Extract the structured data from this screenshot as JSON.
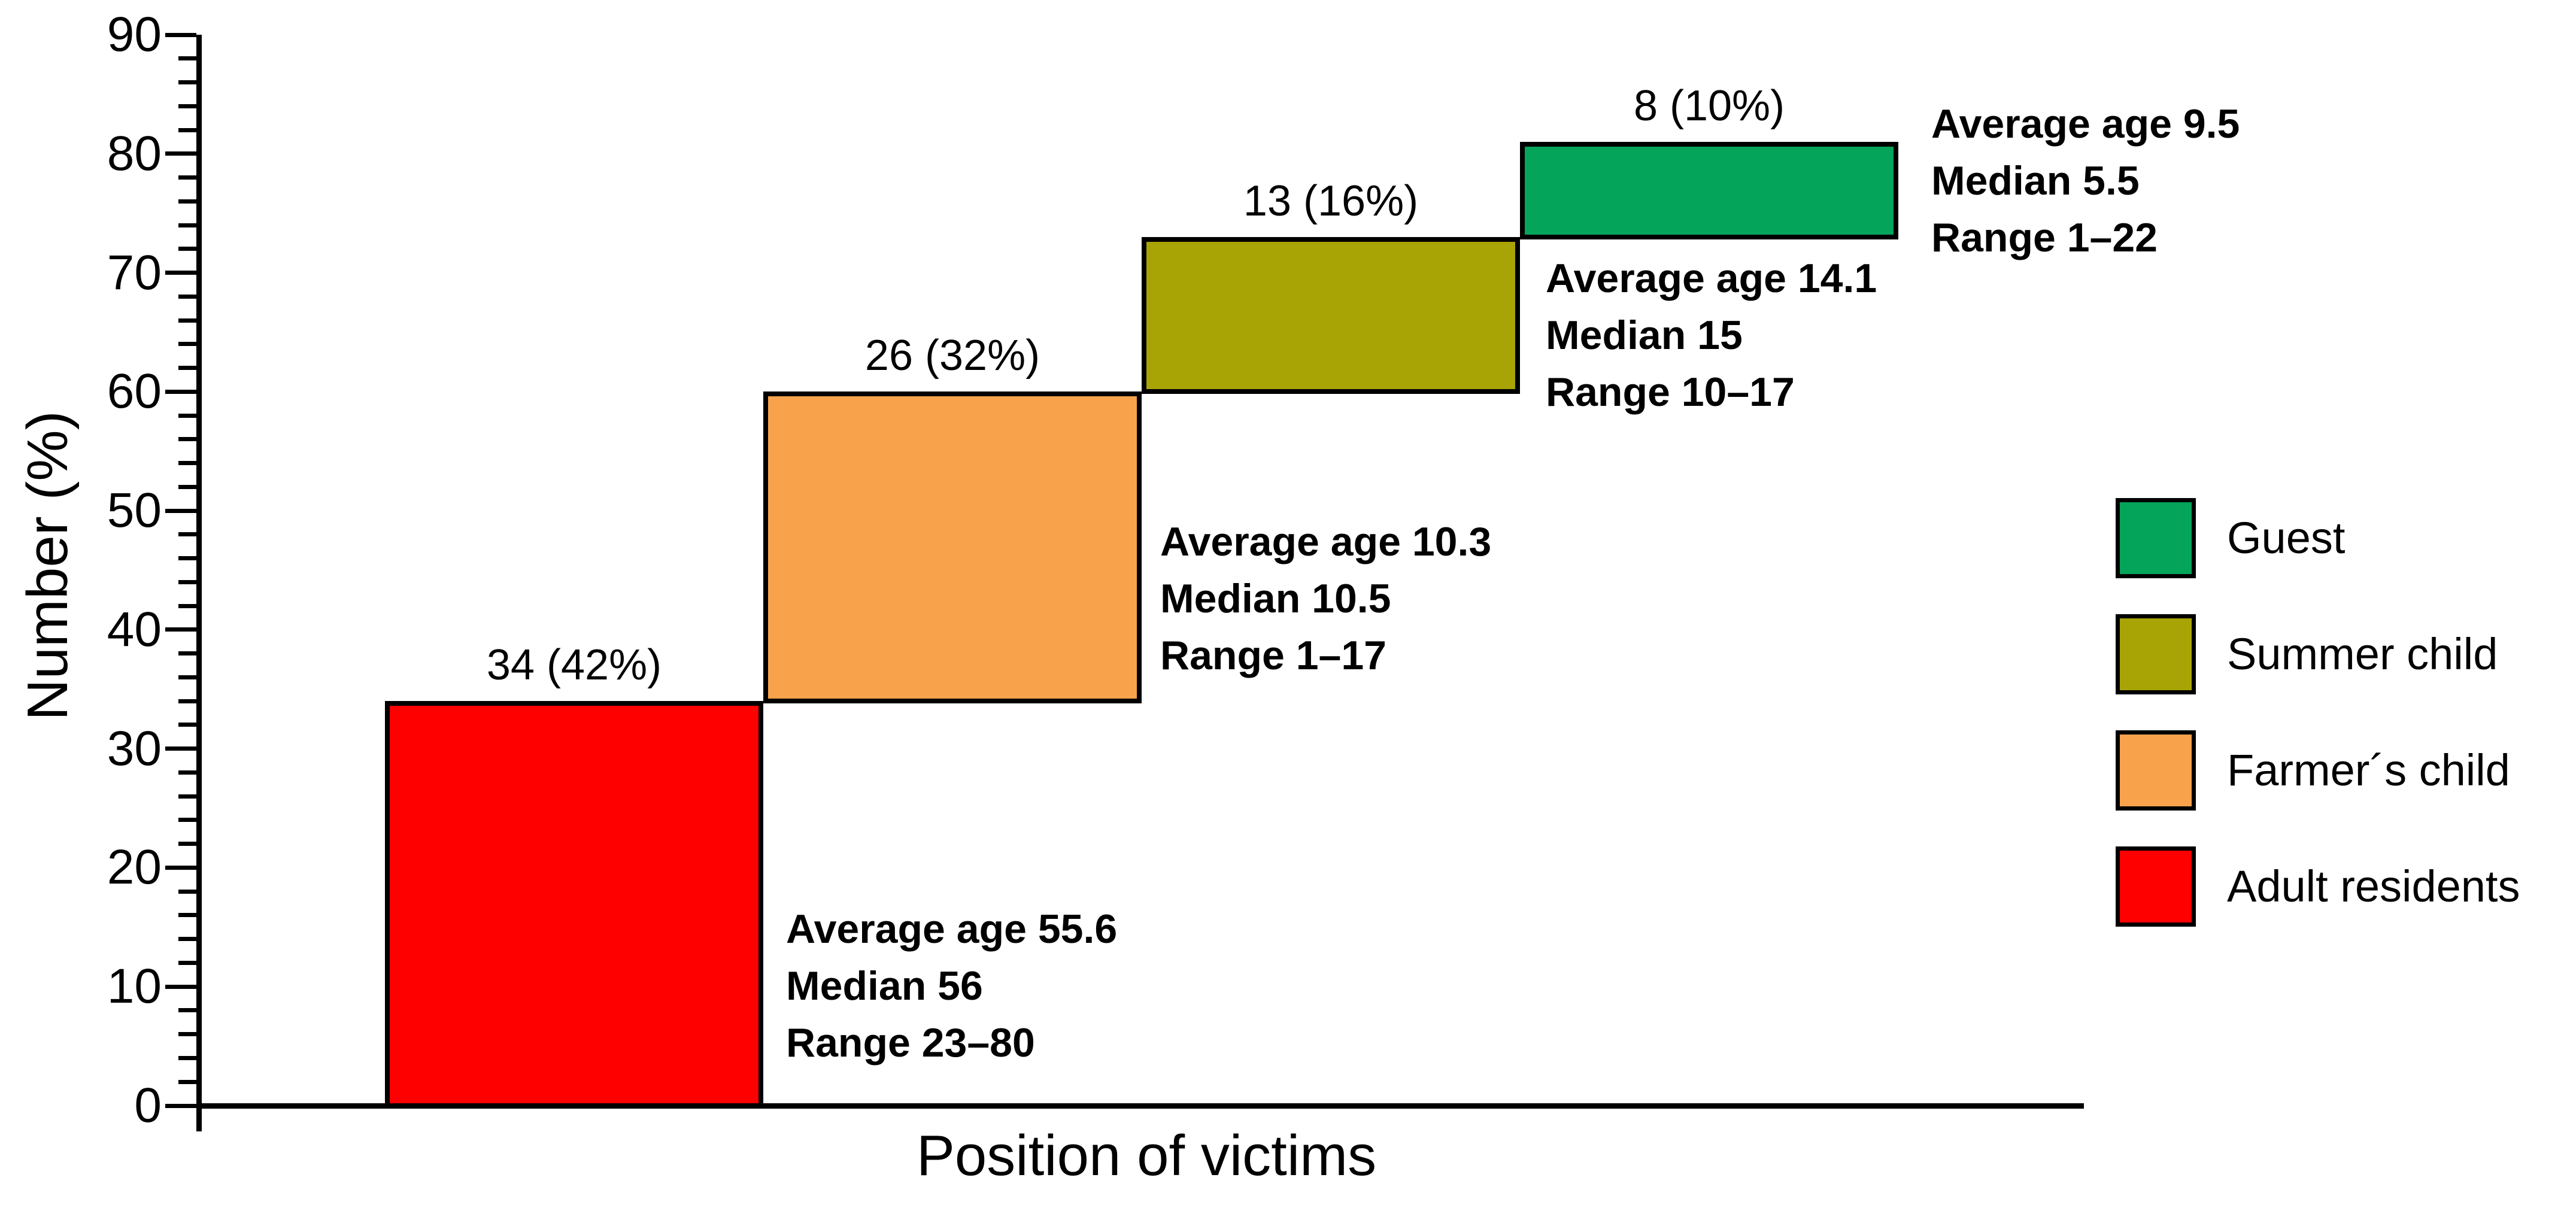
{
  "chart_data": {
    "type": "bar",
    "subtype": "stepped-waterfall",
    "title": "",
    "xlabel": "Position of victims",
    "ylabel": "Number (%)",
    "ylim": [
      0,
      90
    ],
    "ytick_interval_major": 10,
    "ytick_interval_minor": 2,
    "ytick_labels": [
      "0",
      "10",
      "20",
      "30",
      "40",
      "50",
      "60",
      "70",
      "80",
      "90"
    ],
    "grid": false,
    "legend_position": "right",
    "bars": [
      {
        "category": "Adult residents",
        "count": 34,
        "percent": "42%",
        "label": "34 (42%)",
        "span": [
          0,
          34
        ],
        "color": "#fe0000",
        "annotation_lines": [
          "Average age 55.6",
          "Median 56",
          "Range 23–80"
        ]
      },
      {
        "category": "Farmer´s child",
        "count": 26,
        "percent": "32%",
        "label": "26 (32%)",
        "span": [
          34,
          60
        ],
        "color": "#f9a24c",
        "annotation_lines": [
          "Average age 10.3",
          "Median 10.5",
          "Range 1–17"
        ]
      },
      {
        "category": "Summer child",
        "count": 13,
        "percent": "16%",
        "label": "13 (16%)",
        "span": [
          60,
          73
        ],
        "color": "#a9a406",
        "annotation_lines": [
          "Average age 14.1",
          "Median 15",
          "Range 10–17"
        ]
      },
      {
        "category": "Guest",
        "count": 8,
        "percent": "10%",
        "label": "8 (10%)",
        "span": [
          73,
          81
        ],
        "color": "#04a45a",
        "annotation_lines": [
          "Average age 9.5",
          "Median 5.5",
          "Range 1–22"
        ]
      }
    ],
    "legend": [
      {
        "label": "Guest",
        "color": "#04a45a"
      },
      {
        "label": "Summer child",
        "color": "#a9a406"
      },
      {
        "label": "Farmer´s child",
        "color": "#f9a24c"
      },
      {
        "label": "Adult residents",
        "color": "#fe0000"
      }
    ]
  }
}
